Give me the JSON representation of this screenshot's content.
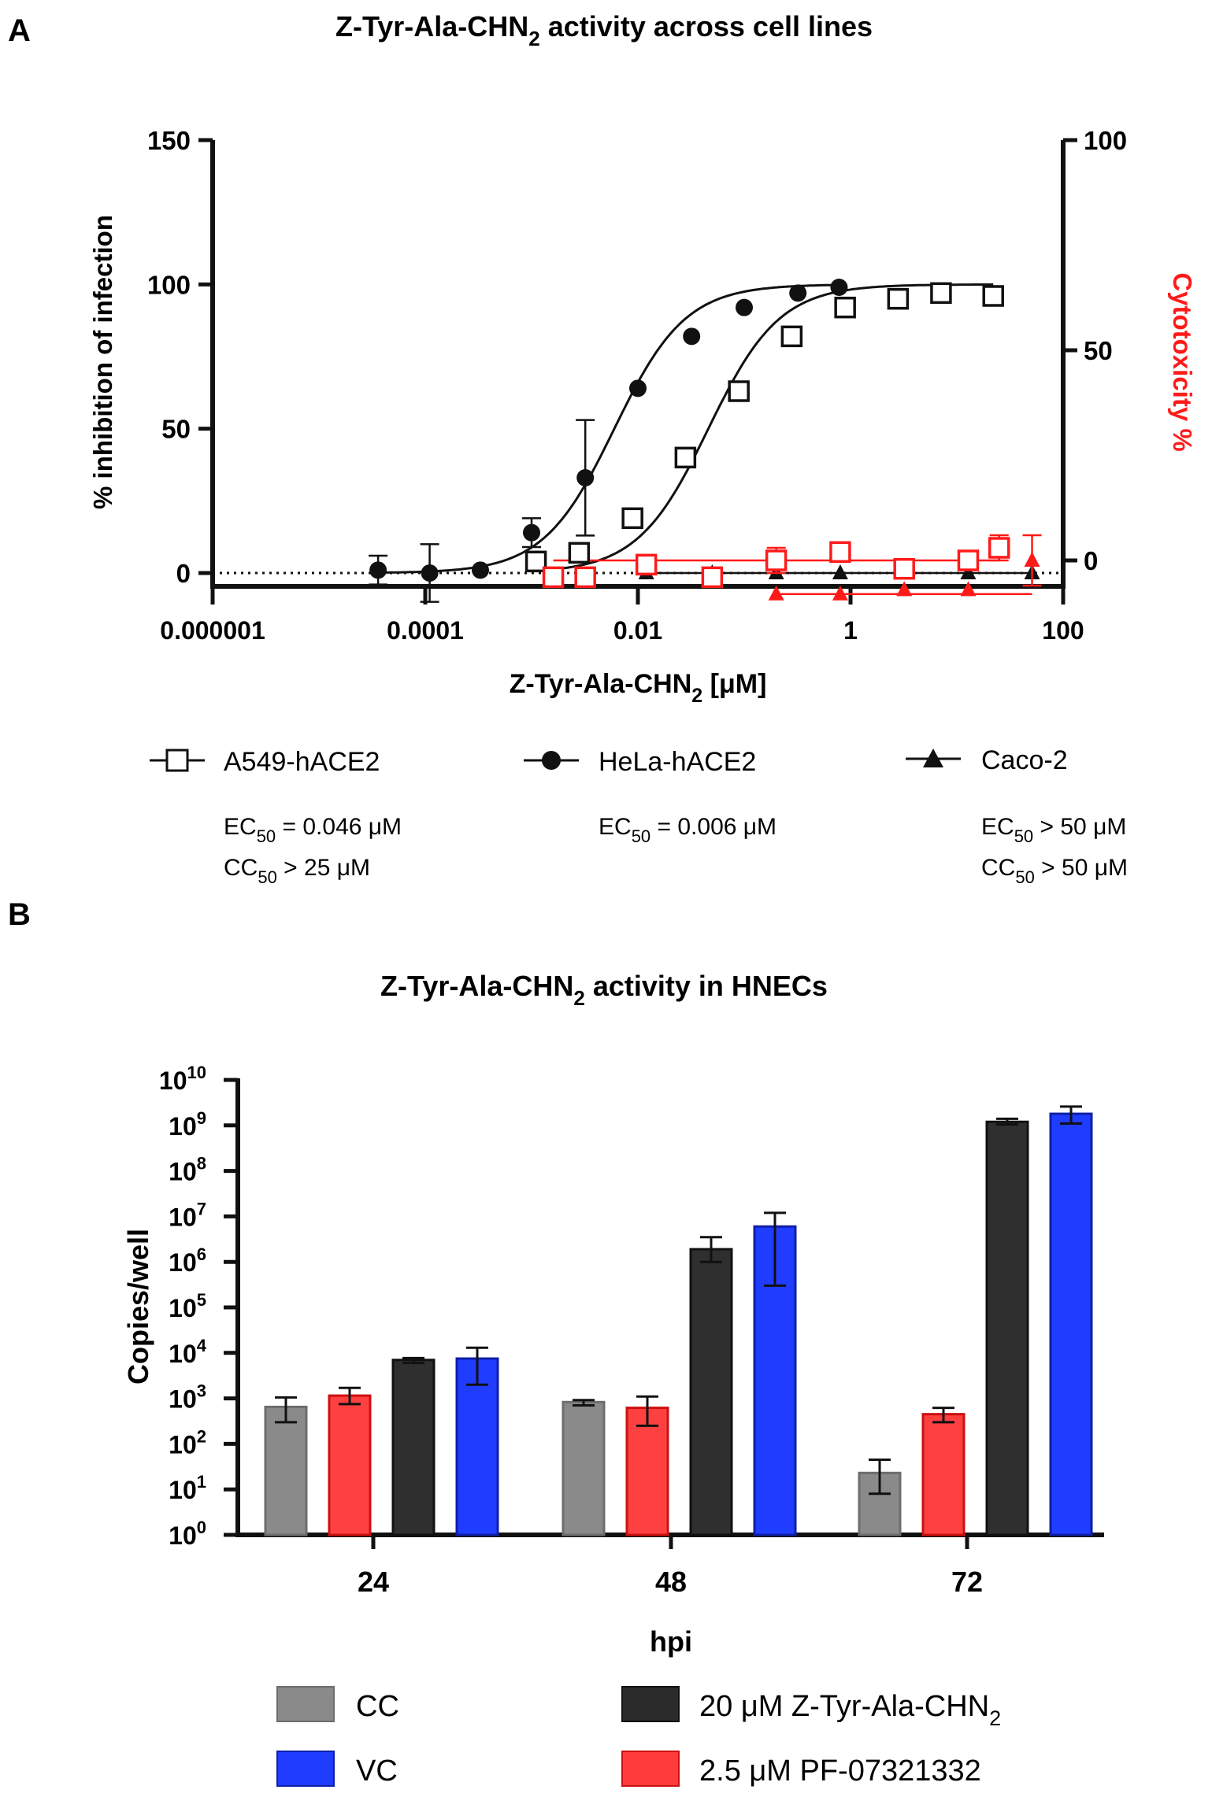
{
  "panel_a": {
    "letter": "A",
    "title_main": "Z-Tyr-Ala-CHN",
    "title_sub": "2",
    "title_rest": " activity across cell lines",
    "ylabel_left": "% inhibition of infection",
    "ylabel_right": "Cytotoxicity %",
    "xlabel_main": "Z-Tyr-Ala-CHN",
    "xlabel_sub": "2",
    "xlabel_rest": " [μM]",
    "legend": [
      {
        "name": "A549-hACE2",
        "ec_label": "EC",
        "ec_sub": "50",
        "ec_value": " = 0.046 μM",
        "cc_label": "CC",
        "cc_sub": "50",
        "cc_value": " > 25 μM"
      },
      {
        "name": "HeLa-hACE2",
        "ec_label": "EC",
        "ec_sub": "50",
        "ec_value": " = 0.006 μM",
        "cc_label": "",
        "cc_sub": "",
        "cc_value": ""
      },
      {
        "name": "Caco-2",
        "ec_label": "EC",
        "ec_sub": "50",
        "ec_value": " > 50 μM",
        "cc_label": "CC",
        "cc_sub": "50",
        "cc_value": " > 50 μM"
      }
    ]
  },
  "panel_b": {
    "letter": "B",
    "title_main": "Z-Tyr-Ala-CHN",
    "title_sub": "2",
    "title_rest": " activity in HNECs",
    "ylabel": "Copies/well",
    "xlabel": "hpi",
    "legend": [
      {
        "label": "CC",
        "sub": "",
        "color": "#8a8a8a"
      },
      {
        "label": "20 μM Z-Tyr-Ala-CHN",
        "sub": "2",
        "color": "#2b2b2b"
      },
      {
        "label": "VC",
        "sub": "",
        "color": "#1f3cff"
      },
      {
        "label": "2.5 μM PF-07321332",
        "sub": "",
        "color": "#ff3b3b"
      }
    ]
  },
  "chart_data": [
    {
      "type": "scatter",
      "title": "Z-Tyr-Ala-CHN2 activity across cell lines",
      "xlabel": "Z-Tyr-Ala-CHN2 [μM]",
      "ylabel": "% inhibition of infection",
      "y2label": "Cytotoxicity %",
      "xscale": "log",
      "xlim": [
        1e-06,
        100
      ],
      "xticks": [
        1e-06,
        0.0001,
        0.01,
        1,
        100
      ],
      "xtick_labels": [
        "0.000001",
        "0.0001",
        "0.01",
        "1",
        "100"
      ],
      "ylim": [
        -10,
        150
      ],
      "yticks": [
        0,
        50,
        100,
        150
      ],
      "y2lim": [
        -5,
        100
      ],
      "y2ticks": [
        0,
        50,
        100
      ],
      "baseline_dotted_y": 0,
      "series": [
        {
          "name": "A549-hACE2",
          "marker": "open-square",
          "color": "#111111",
          "axis": "left",
          "x": [
            0.0011,
            0.0028,
            0.0089,
            0.028,
            0.089,
            0.28,
            0.89,
            2.8,
            7.1,
            22
          ],
          "y": [
            4,
            7,
            19,
            40,
            63,
            82,
            92,
            95,
            97,
            96
          ],
          "err": [
            0,
            0,
            0,
            0,
            0,
            0,
            0,
            0,
            0,
            0
          ],
          "fit": {
            "ec50": 0.046,
            "hill": 1.3,
            "top": 100,
            "bottom": 0
          }
        },
        {
          "name": "HeLa-hACE2",
          "marker": "filled-circle",
          "color": "#111111",
          "axis": "left",
          "x": [
            3.6e-05,
            0.00011,
            0.00033,
            0.001,
            0.0032,
            0.01,
            0.032,
            0.1,
            0.32,
            0.78
          ],
          "y": [
            1,
            0,
            1,
            14,
            33,
            64,
            82,
            92,
            97,
            99
          ],
          "err": [
            5,
            10,
            0,
            5,
            20,
            0,
            0,
            0,
            0,
            0
          ],
          "fit": {
            "ec50": 0.006,
            "hill": 1.3,
            "top": 100,
            "bottom": 0
          }
        },
        {
          "name": "Caco-2",
          "marker": "filled-triangle",
          "color": "#111111",
          "axis": "left",
          "x": [
            0.012,
            0.05,
            0.2,
            0.8,
            3.2,
            12.8,
            51
          ],
          "y": [
            0,
            0,
            0,
            0,
            0,
            0,
            0
          ],
          "err": [
            0,
            0,
            0,
            0,
            0,
            0,
            0
          ]
        },
        {
          "name": "A549-hACE2 cytotoxicity",
          "marker": "open-square",
          "color": "#ff1a1a",
          "axis": "right",
          "x": [
            0.0016,
            0.0032,
            0.012,
            0.05,
            0.2,
            0.8,
            3.2,
            12.8,
            25
          ],
          "y": [
            -4,
            -4,
            -1,
            -4,
            0,
            2,
            -2,
            0,
            3
          ],
          "err": [
            0,
            0,
            0,
            0,
            3,
            0,
            0,
            0,
            3
          ]
        },
        {
          "name": "Caco-2 cytotoxicity",
          "marker": "filled-triangle",
          "color": "#ff1a1a",
          "axis": "right",
          "x": [
            0.2,
            0.8,
            3.2,
            12.8,
            51
          ],
          "y": [
            -8,
            -8,
            -7,
            -7,
            0
          ],
          "err": [
            0,
            0,
            0,
            0,
            6
          ]
        }
      ]
    },
    {
      "type": "bar",
      "title": "Z-Tyr-Ala-CHN2 activity in HNECs",
      "xlabel": "hpi",
      "ylabel": "Copies/well",
      "yscale": "log",
      "ylim": [
        1,
        10000000000
      ],
      "ytick_exponents": [
        0,
        1,
        2,
        3,
        4,
        5,
        6,
        7,
        8,
        9,
        10
      ],
      "categories": [
        "24",
        "48",
        "72"
      ],
      "series": [
        {
          "name": "CC",
          "color": "#8a8a8a",
          "edge": "#6d6d6d",
          "values": [
            650,
            830,
            23
          ],
          "err_low": [
            300,
            700,
            8
          ],
          "err_high": [
            1050,
            920,
            45
          ]
        },
        {
          "name": "2.5 μM PF-07321332",
          "color": "#ff4040",
          "edge": "#cc1010",
          "values": [
            1150,
            620,
            450
          ],
          "err_low": [
            750,
            250,
            300
          ],
          "err_high": [
            1700,
            1100,
            620
          ]
        },
        {
          "name": "20 μM Z-Tyr-Ala-CHN2",
          "color": "#2f2f2f",
          "edge": "#111111",
          "values": [
            7000,
            1900000,
            1200000000
          ],
          "err_low": [
            6000,
            1000000,
            1050000000
          ],
          "err_high": [
            7700,
            3500000,
            1400000000
          ]
        },
        {
          "name": "VC",
          "color": "#1f3cff",
          "edge": "#0f1fa8",
          "values": [
            7500,
            6000000,
            1800000000
          ],
          "err_low": [
            2000,
            300000,
            1100000000
          ],
          "err_high": [
            13000,
            12000000,
            2600000000
          ]
        }
      ]
    }
  ]
}
